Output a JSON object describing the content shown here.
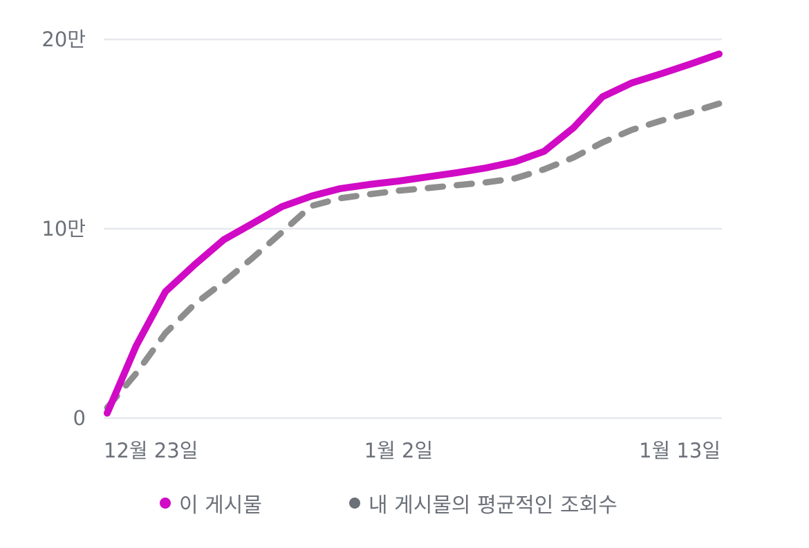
{
  "chart_data": {
    "type": "line",
    "title": "",
    "xlabel": "",
    "ylabel": "",
    "ylim": [
      0,
      200000
    ],
    "grid": true,
    "legend_position": "bottom",
    "y_ticks": [
      {
        "value": 0,
        "label": "0"
      },
      {
        "value": 100000,
        "label": "10만"
      },
      {
        "value": 200000,
        "label": "20만"
      }
    ],
    "x_tick_labels": [
      {
        "index": 0,
        "label": "12월 23일",
        "anchor": "start"
      },
      {
        "index": 10,
        "label": "1월 2일",
        "anchor": "middle"
      },
      {
        "index": 21,
        "label": "1월 13일",
        "anchor": "end"
      }
    ],
    "x": [
      "12/23",
      "12/24",
      "12/25",
      "12/26",
      "12/27",
      "12/28",
      "12/29",
      "12/30",
      "12/31",
      "1/1",
      "1/2",
      "1/3",
      "1/4",
      "1/5",
      "1/6",
      "1/7",
      "1/8",
      "1/9",
      "1/10",
      "1/11",
      "1/12",
      "1/13"
    ],
    "series": [
      {
        "name": "이 게시물",
        "color": "#d10ac5",
        "style": "solid",
        "values": [
          2600,
          38300,
          66800,
          81000,
          94200,
          102900,
          111700,
          117200,
          121200,
          123400,
          125200,
          127400,
          129600,
          132100,
          135400,
          140900,
          153300,
          169700,
          177000,
          181800,
          186900,
          192300
        ]
      },
      {
        "name": "내 게시물의 평균적인 조회수",
        "color": "#8e8e8e",
        "style": "dashed",
        "values": [
          5500,
          23700,
          44900,
          60200,
          71900,
          84700,
          98200,
          112000,
          116100,
          118200,
          120100,
          121500,
          123000,
          124500,
          126600,
          131400,
          137600,
          145600,
          152200,
          157000,
          161300,
          166100
        ]
      }
    ]
  },
  "legend": {
    "items": [
      {
        "label": "이 게시물",
        "color": "#d10ac5"
      },
      {
        "label": "내 게시물의 평균적인 조회수",
        "color": "#6b7079"
      }
    ]
  },
  "colors": {
    "grid": "#e6e8ec",
    "axis_text": "#6b7079"
  }
}
